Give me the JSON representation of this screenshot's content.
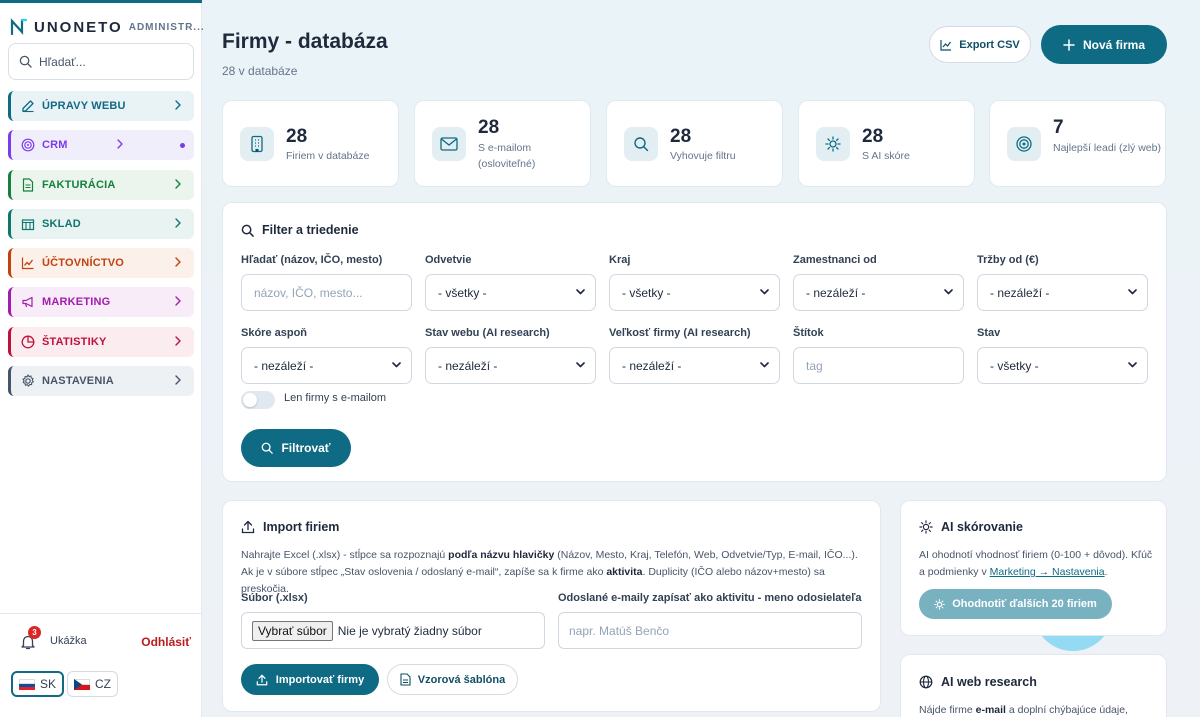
{
  "brand": {
    "name": "UNONETO",
    "suffix": "ADMINISTR..."
  },
  "sidebar": {
    "search_placeholder": "Hľadať...",
    "items": [
      {
        "label": "ÚPRAVY WEBU",
        "color": "#0f6a84",
        "bg": "#e9f2f5",
        "icon": "edit-icon"
      },
      {
        "label": "CRM",
        "color": "#7c3aed",
        "bg": "#f1eefb",
        "icon": "target-icon"
      },
      {
        "label": "FAKTURÁCIA",
        "color": "#15803d",
        "bg": "#ebf5ee",
        "icon": "document-icon"
      },
      {
        "label": "SKLAD",
        "color": "#0f766e",
        "bg": "#e8f3f2",
        "icon": "warehouse-icon"
      },
      {
        "label": "ÚČTOVNÍCTVO",
        "color": "#c2410c",
        "bg": "#fbf0ea",
        "icon": "chart-line-icon"
      },
      {
        "label": "MARKETING",
        "color": "#a21caf",
        "bg": "#f7ecf7",
        "icon": "megaphone-icon"
      },
      {
        "label": "ŠTATISTIKY",
        "color": "#be123c",
        "bg": "#faecef",
        "icon": "pie-chart-icon"
      },
      {
        "label": "NASTAVENIA",
        "color": "#475569",
        "bg": "#eef1f4",
        "icon": "gear-icon"
      }
    ],
    "notifications": "3",
    "user": "Ukážka",
    "logout": "Odhlásiť",
    "languages": [
      "SK",
      "CZ"
    ]
  },
  "header": {
    "title": "Firmy - databáza",
    "subtitle": "28 v databáze",
    "export_label": "Export CSV",
    "new_label": "Nová firma"
  },
  "stats": [
    {
      "value": "28",
      "label": "Firiem v databáze",
      "icon": "building-icon"
    },
    {
      "value": "28",
      "label": "S e-mailom (osloviteľné)",
      "icon": "mail-icon"
    },
    {
      "value": "28",
      "label": "Vyhovuje filtru",
      "icon": "search-icon"
    },
    {
      "value": "28",
      "label": "S AI skóre",
      "icon": "sun-icon"
    },
    {
      "value": "7",
      "label": "Najlepší leadi (zlý web)",
      "icon": "target-icon"
    }
  ],
  "filter": {
    "title": "Filter a triedenie",
    "fields": [
      {
        "label": "Hľadať (názov, IČO, mesto)",
        "value": "názov, IČO, mesto...",
        "type": "text"
      },
      {
        "label": "Odvetvie",
        "value": "- všetky -",
        "type": "select"
      },
      {
        "label": "Kraj",
        "value": "- všetky -",
        "type": "select"
      },
      {
        "label": "Zamestnanci od",
        "value": "- nezáleží -",
        "type": "select"
      },
      {
        "label": "Tržby od (€)",
        "value": "- nezáleží -",
        "type": "select"
      },
      {
        "label": "Skóre aspoň",
        "value": "- nezáleží -",
        "type": "select"
      },
      {
        "label": "Stav webu (AI research)",
        "value": "- nezáleží -",
        "type": "select"
      },
      {
        "label": "Veľkosť firmy (AI research)",
        "value": "- nezáleží -",
        "type": "select"
      },
      {
        "label": "Štítok",
        "value": "tag",
        "type": "text"
      },
      {
        "label": "Stav",
        "value": "- všetky -",
        "type": "select"
      }
    ],
    "toggle_label": "Len firmy s e-mailom",
    "button": "Filtrovať"
  },
  "import": {
    "title": "Import firiem",
    "desc_1": "Nahrajte Excel (.xlsx) - stĺpce sa rozpoznajú ",
    "desc_b1": "podľa názvu hlavičky",
    "desc_2": " (Názov, Mesto, Kraj, Telefón, Web, Odvetvie/Typ, E-mail, IČO...). Ak je v súbore stĺpec „Stav oslovenia / odoslaný e-mail“, zapíše sa k firme ako ",
    "desc_b2": "aktivita",
    "desc_3": ". Duplicity (IČO alebo názov+mesto) sa preskočia.",
    "file_label": "Súbor (.xlsx)",
    "file_button": "Vybrať súbor",
    "file_status": "Nie je vybratý žiadny súbor",
    "sender_label": "Odoslané e-maily zapísať ako aktivitu - meno odosielateľa",
    "sender_placeholder": "napr. Matúš Benčo",
    "import_button": "Importovať firmy",
    "template_button": "Vzorová šablóna"
  },
  "ai_score": {
    "title": "AI skórovanie",
    "desc": "AI ohodnotí vhodnosť firiem (0-100 + dôvod). Kľúč a podmienky v ",
    "link": "Marketing → Nastavenia",
    "desc_end": ".",
    "button": "Ohodnotiť ďalších 20 firiem"
  },
  "ai_web": {
    "title": "AI web research",
    "desc_1": "Nájde firme ",
    "desc_b": "e-mail",
    "desc_2": " a doplní chýbajúce údaje,"
  }
}
